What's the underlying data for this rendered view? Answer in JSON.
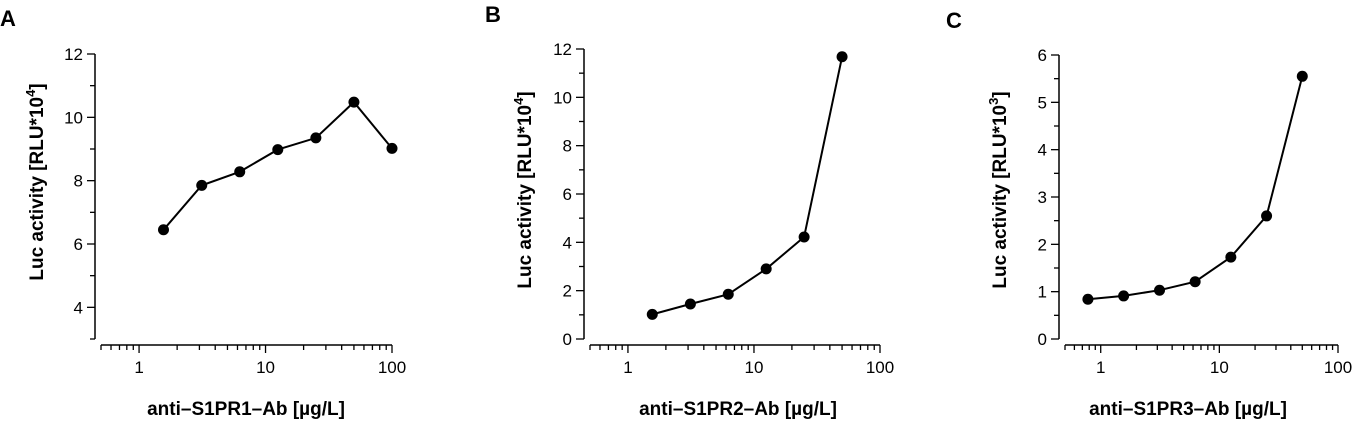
{
  "chart_data": [
    {
      "type": "line",
      "panel_label": "A",
      "xscale": "log",
      "xlim": [
        0.5,
        100
      ],
      "ylim": [
        3,
        12
      ],
      "x_ticks": [
        {
          "value": 1,
          "label": "1"
        },
        {
          "value": 10,
          "label": "10"
        },
        {
          "value": 100,
          "label": "100"
        }
      ],
      "y_ticks": [
        {
          "value": 4,
          "label": "4"
        },
        {
          "value": 6,
          "label": "6"
        },
        {
          "value": 8,
          "label": "8"
        },
        {
          "value": 10,
          "label": "10"
        },
        {
          "value": 12,
          "label": "12"
        }
      ],
      "xlabel": "anti–S1PR1–Ab [µg/L]",
      "ylabel_main": "Luc activity [RLU*10",
      "ylabel_sup": "4",
      "ylabel_end": "]",
      "x": [
        1.56,
        3.13,
        6.25,
        12.5,
        25,
        50,
        100
      ],
      "y": [
        6.45,
        7.85,
        8.28,
        8.98,
        9.35,
        10.48,
        9.02
      ]
    },
    {
      "type": "line",
      "panel_label": "B",
      "xscale": "log",
      "xlim": [
        0.5,
        100
      ],
      "ylim": [
        0,
        12
      ],
      "x_ticks": [
        {
          "value": 1,
          "label": "1"
        },
        {
          "value": 10,
          "label": "10"
        },
        {
          "value": 100,
          "label": "100"
        }
      ],
      "y_ticks": [
        {
          "value": 0,
          "label": "0"
        },
        {
          "value": 2,
          "label": "2"
        },
        {
          "value": 4,
          "label": "4"
        },
        {
          "value": 6,
          "label": "6"
        },
        {
          "value": 8,
          "label": "8"
        },
        {
          "value": 10,
          "label": "10"
        },
        {
          "value": 12,
          "label": "12"
        }
      ],
      "xlabel": "anti–S1PR2–Ab [µg/L]",
      "ylabel_main": "Luc activity [RLU*10",
      "ylabel_sup": "4",
      "ylabel_end": "]",
      "x": [
        1.56,
        3.13,
        6.25,
        12.5,
        25,
        50
      ],
      "y": [
        1.02,
        1.45,
        1.85,
        2.9,
        4.22,
        11.68
      ]
    },
    {
      "type": "line",
      "panel_label": "C",
      "xscale": "log",
      "xlim": [
        0.5,
        100
      ],
      "ylim": [
        0,
        6
      ],
      "x_ticks": [
        {
          "value": 1,
          "label": "1"
        },
        {
          "value": 10,
          "label": "10"
        },
        {
          "value": 100,
          "label": "100"
        }
      ],
      "y_ticks": [
        {
          "value": 0,
          "label": "0"
        },
        {
          "value": 1,
          "label": "1"
        },
        {
          "value": 2,
          "label": "2"
        },
        {
          "value": 3,
          "label": "3"
        },
        {
          "value": 4,
          "label": "4"
        },
        {
          "value": 5,
          "label": "5"
        },
        {
          "value": 6,
          "label": "6"
        }
      ],
      "xlabel": "anti–S1PR3–Ab [µg/L]",
      "ylabel_main": "Luc activity [RLU*10",
      "ylabel_sup": "3",
      "ylabel_end": "]",
      "x": [
        0.78,
        1.56,
        3.13,
        6.25,
        12.5,
        25,
        50
      ],
      "y": [
        0.84,
        0.91,
        1.03,
        1.21,
        1.73,
        2.6,
        5.55
      ]
    }
  ]
}
